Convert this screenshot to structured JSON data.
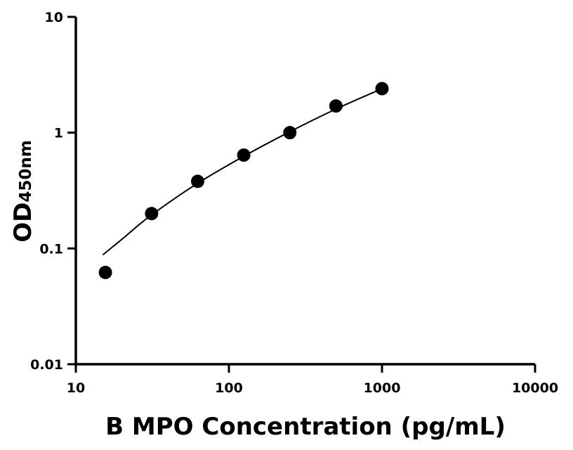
{
  "chart_data": {
    "type": "scatter",
    "xlabel": "B MPO Concentration (pg/mL)",
    "ylabel_main": "OD",
    "ylabel_sub": "450nm",
    "x_scale": "log",
    "y_scale": "log",
    "xlim": [
      10,
      10000
    ],
    "ylim": [
      0.01,
      10
    ],
    "x_ticks": [
      10,
      100,
      1000,
      10000
    ],
    "x_tick_labels": [
      "10",
      "100",
      "1000",
      "10000"
    ],
    "y_ticks": [
      0.01,
      0.1,
      1,
      10
    ],
    "y_tick_labels": [
      "0.01",
      "0.1",
      "1",
      "10"
    ],
    "grid": false,
    "series": [
      {
        "x": [
          15.6,
          31.25,
          62.5,
          125,
          250,
          500,
          1000
        ],
        "y": [
          0.062,
          0.2,
          0.38,
          0.64,
          1.0,
          1.7,
          2.4
        ]
      }
    ],
    "fit_curve": {
      "x": [
        15,
        20,
        31.25,
        62.5,
        125,
        250,
        500,
        1000
      ],
      "y": [
        0.088,
        0.12,
        0.195,
        0.365,
        0.625,
        1.02,
        1.6,
        2.4
      ]
    }
  }
}
